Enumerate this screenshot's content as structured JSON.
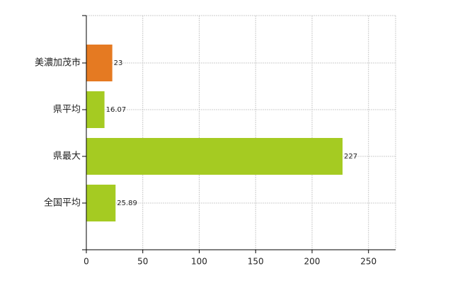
{
  "chart_data": {
    "type": "hbar",
    "categories": [
      "美濃加茂市",
      "県平均",
      "県最大",
      "全国平均"
    ],
    "values": [
      23,
      16.07,
      227,
      25.89
    ],
    "colors": [
      "#e57a22",
      "#a5cb22",
      "#a5cb22",
      "#a5cb22"
    ],
    "xlim": [
      0,
      274
    ],
    "xticks": [
      0,
      50,
      100,
      150,
      200,
      250
    ],
    "grid": true
  }
}
